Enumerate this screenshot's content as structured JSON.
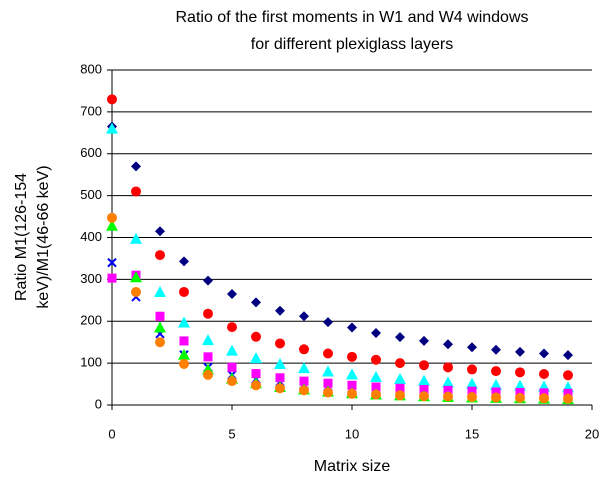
{
  "chart_data": {
    "type": "scatter",
    "title": [
      "Ratio of the first moments in W1 and W4 windows",
      "for different plexiglass layers"
    ],
    "xlabel": "Matrix size",
    "ylabel": [
      "Ratio M1(126-154",
      "keV)/M1(46-66 keV)"
    ],
    "x": [
      0,
      1,
      2,
      3,
      4,
      5,
      6,
      7,
      8,
      9,
      10,
      11,
      12,
      13,
      14,
      15,
      16,
      17,
      18,
      19
    ],
    "series": [
      {
        "color": "#000080",
        "marker": "diamond",
        "values": [
          665,
          570,
          415,
          343,
          297,
          265,
          245,
          225,
          212,
          198,
          185,
          172,
          162,
          153,
          145,
          138,
          132,
          127,
          123,
          119
        ]
      },
      {
        "color": "#ff0000",
        "marker": "circle",
        "values": [
          730,
          510,
          358,
          270,
          218,
          186,
          163,
          147,
          133,
          123,
          115,
          108,
          100,
          95,
          90,
          85,
          81,
          78,
          74,
          71
        ]
      },
      {
        "color": "#00ffff",
        "marker": "triangle",
        "values": [
          660,
          397,
          270,
          197,
          155,
          130,
          112,
          98,
          88,
          80,
          73,
          67,
          62,
          58,
          54,
          51,
          48,
          46,
          44,
          42
        ]
      },
      {
        "color": "#0000ff",
        "marker": "x",
        "values": [
          340,
          258,
          170,
          120,
          90,
          72,
          62,
          55,
          49,
          44,
          40,
          37,
          34,
          32,
          30,
          29,
          28,
          27,
          26,
          25
        ]
      },
      {
        "color": "#ff00ff",
        "marker": "square",
        "values": [
          303,
          310,
          212,
          153,
          115,
          90,
          75,
          65,
          57,
          52,
          47,
          43,
          40,
          37,
          35,
          33,
          31,
          30,
          29,
          28
        ]
      },
      {
        "color": "#00ff00",
        "marker": "triangle",
        "values": [
          428,
          305,
          185,
          120,
          85,
          63,
          52,
          43,
          37,
          32,
          28,
          25,
          23,
          21,
          19,
          18,
          17,
          16,
          15,
          14
        ]
      },
      {
        "color": "#ff8000",
        "marker": "circle",
        "values": [
          447,
          270,
          150,
          98,
          72,
          57,
          47,
          40,
          35,
          30,
          27,
          25,
          23,
          21,
          20,
          19,
          18,
          17,
          16,
          15
        ]
      }
    ],
    "xlim": [
      0,
      20
    ],
    "xticks": [
      0,
      5,
      10,
      15,
      20
    ],
    "ylim": [
      0,
      800
    ],
    "yticks": [
      0,
      100,
      200,
      300,
      400,
      500,
      600,
      700,
      800
    ],
    "grid": true
  }
}
